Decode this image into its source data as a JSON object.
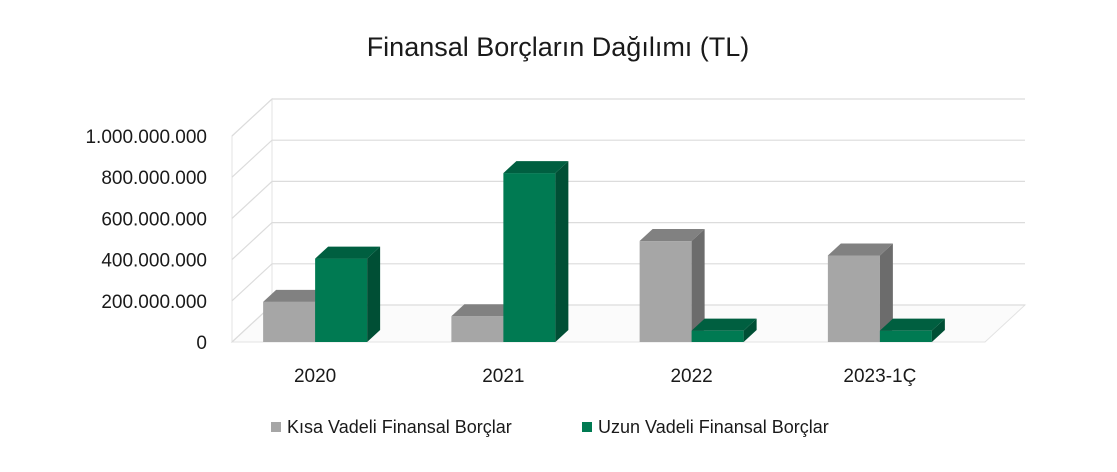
{
  "chart_data": {
    "type": "bar",
    "title": "Finansal Borçların Dağılımı (TL)",
    "categories": [
      "2020",
      "2021",
      "2022",
      "2023-1Ç"
    ],
    "series": [
      {
        "name": "Kısa Vadeli Finansal Borçlar",
        "values": [
          195000000,
          125000000,
          490000000,
          420000000
        ],
        "color": "#a6a6a6"
      },
      {
        "name": "Uzun Vadeli Finansal Borçlar",
        "values": [
          405000000,
          820000000,
          55000000,
          55000000
        ],
        "color": "#007a52"
      }
    ],
    "yticks": [
      "0",
      "200.000.000",
      "400.000.000",
      "600.000.000",
      "800.000.000",
      "1.000.000.000"
    ],
    "ylim": [
      0,
      1000000000
    ],
    "style": "3d-column",
    "grid": true,
    "legend_position": "bottom"
  }
}
